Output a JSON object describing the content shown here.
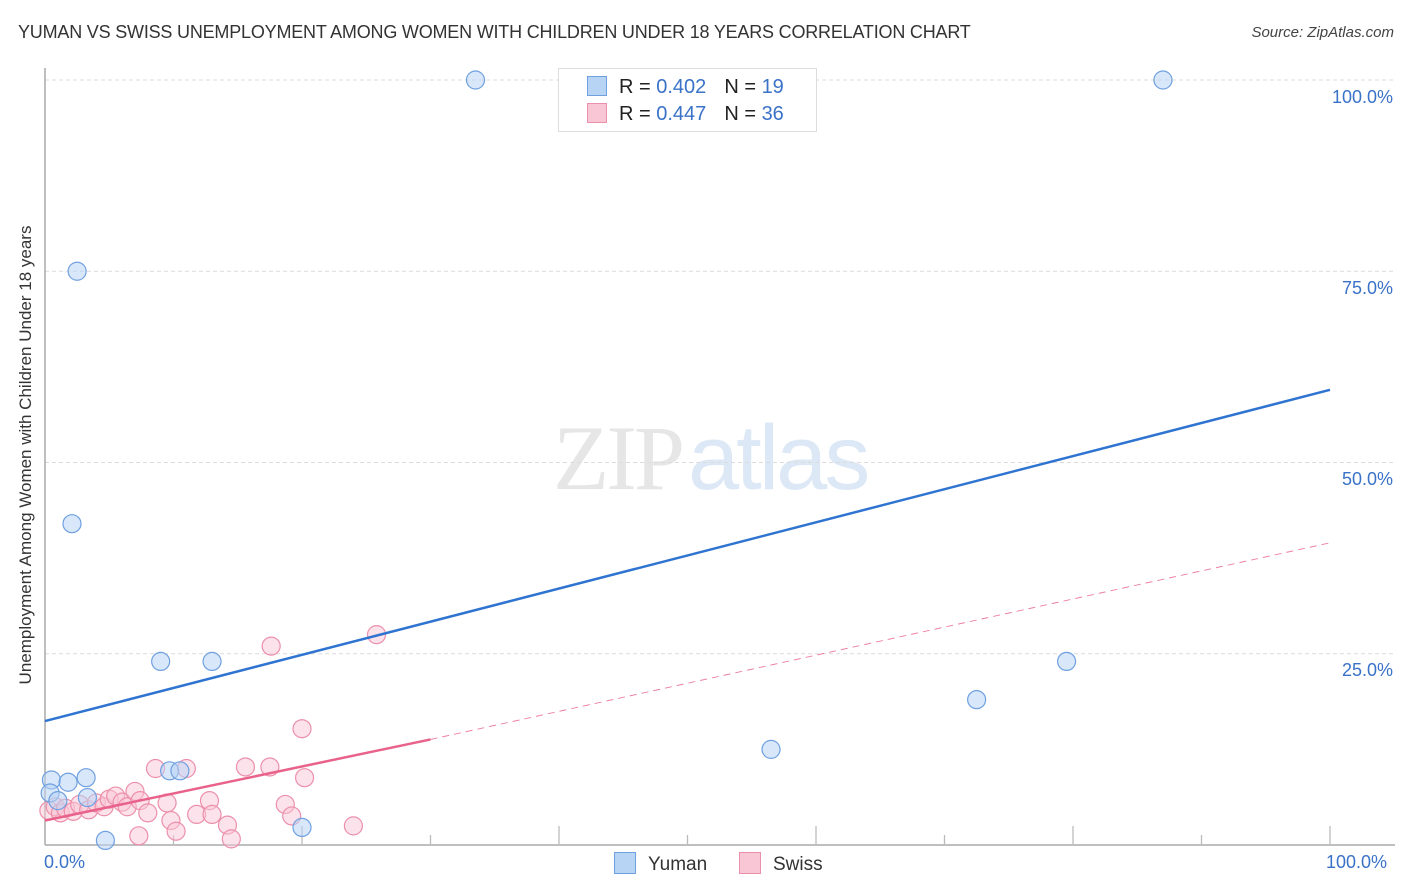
{
  "header": {
    "title": "YUMAN VS SWISS UNEMPLOYMENT AMONG WOMEN WITH CHILDREN UNDER 18 YEARS CORRELATION CHART",
    "source": "Source: ZipAtlas.com"
  },
  "watermark": {
    "zip": "ZIP",
    "atlas": "atlas"
  },
  "legend": {
    "rows": [
      {
        "r_label": "R = ",
        "r_value": "0.402",
        "n_label": "N = ",
        "n_value": "19",
        "color": "#b8d4f4",
        "border": "#6fa0e0"
      },
      {
        "r_label": "R = ",
        "r_value": "0.447",
        "n_label": "N = ",
        "n_value": "36",
        "color": "#f9c6d5",
        "border": "#ec8fab"
      }
    ]
  },
  "bottom_legend": {
    "yuman": "Yuman",
    "swiss": "Swiss"
  },
  "axes": {
    "ylabel": "Unemployment Among Women with Children Under 18 years",
    "y_ticks": [
      "100.0%",
      "75.0%",
      "50.0%",
      "25.0%"
    ],
    "x_ticks": [
      "0.0%",
      "100.0%"
    ]
  },
  "chart_data": {
    "type": "scatter",
    "title": "Yuman vs Swiss Unemployment Among Women with Children Under 18 years Correlation Chart",
    "xlabel": "",
    "ylabel": "Unemployment Among Women with Children Under 18 years",
    "xlim": [
      0,
      100
    ],
    "ylim": [
      0,
      100
    ],
    "grid": true,
    "legend_position": "top-center",
    "series": [
      {
        "name": "Yuman",
        "color": "#3a7bd5",
        "R": 0.402,
        "N": 19,
        "points": [
          [
            0.5,
            8.5
          ],
          [
            1.8,
            8.2
          ],
          [
            3.2,
            8.8
          ],
          [
            0.4,
            6.8
          ],
          [
            1.0,
            5.8
          ],
          [
            3.3,
            6.2
          ],
          [
            2.5,
            75.0
          ],
          [
            2.1,
            42.0
          ],
          [
            33.5,
            100.0
          ],
          [
            87.0,
            100.0
          ],
          [
            9.0,
            24.0
          ],
          [
            13.0,
            24.0
          ],
          [
            9.7,
            9.7
          ],
          [
            10.5,
            9.7
          ],
          [
            4.7,
            0.6
          ],
          [
            20.0,
            2.3
          ],
          [
            56.5,
            12.5
          ],
          [
            72.5,
            19.0
          ],
          [
            79.5,
            24.0
          ]
        ],
        "trend": {
          "x0": 0,
          "y0": 16.2,
          "x1": 100,
          "y1": 59.5,
          "style": "solid"
        }
      },
      {
        "name": "Swiss",
        "color": "#e8628b",
        "R": 0.447,
        "N": 36,
        "points": [
          [
            0.3,
            4.5
          ],
          [
            0.8,
            5.0
          ],
          [
            1.2,
            4.2
          ],
          [
            1.6,
            4.8
          ],
          [
            2.2,
            4.4
          ],
          [
            2.7,
            5.3
          ],
          [
            3.4,
            4.6
          ],
          [
            4.0,
            5.5
          ],
          [
            4.6,
            5.0
          ],
          [
            5.0,
            6.0
          ],
          [
            5.5,
            6.4
          ],
          [
            6.0,
            5.6
          ],
          [
            6.4,
            5.0
          ],
          [
            7.0,
            7.0
          ],
          [
            7.4,
            5.8
          ],
          [
            8.0,
            4.2
          ],
          [
            8.6,
            10.0
          ],
          [
            9.5,
            5.5
          ],
          [
            9.8,
            3.2
          ],
          [
            10.2,
            1.8
          ],
          [
            11.0,
            10.0
          ],
          [
            11.8,
            4.0
          ],
          [
            12.8,
            5.8
          ],
          [
            13.0,
            4.0
          ],
          [
            14.2,
            2.6
          ],
          [
            14.5,
            0.8
          ],
          [
            15.6,
            10.2
          ],
          [
            17.5,
            10.2
          ],
          [
            17.6,
            26.0
          ],
          [
            18.7,
            5.3
          ],
          [
            19.2,
            3.8
          ],
          [
            20.0,
            15.2
          ],
          [
            20.2,
            8.8
          ],
          [
            24.0,
            2.5
          ],
          [
            25.8,
            27.5
          ],
          [
            7.3,
            1.2
          ]
        ],
        "trend": {
          "x0": 0,
          "y0": 3.2,
          "x1": 30,
          "y1": 13.8,
          "style": "solid"
        },
        "trend_extension": {
          "x0": 30,
          "y0": 13.8,
          "x1": 100,
          "y1": 39.5,
          "style": "dashed"
        }
      }
    ]
  }
}
